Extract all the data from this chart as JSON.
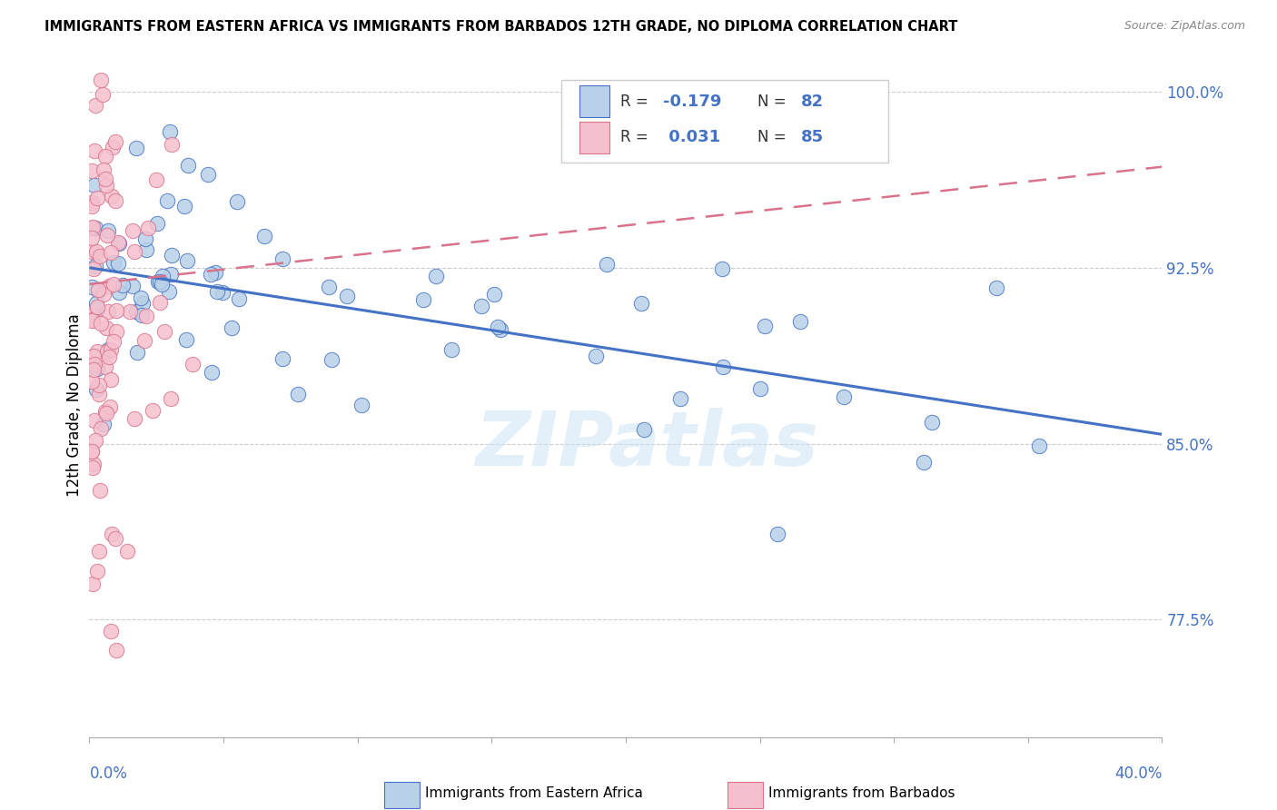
{
  "title": "IMMIGRANTS FROM EASTERN AFRICA VS IMMIGRANTS FROM BARBADOS 12TH GRADE, NO DIPLOMA CORRELATION CHART",
  "source": "Source: ZipAtlas.com",
  "ylabel_label": "12th Grade, No Diploma",
  "legend_label1": "Immigrants from Eastern Africa",
  "legend_label2": "Immigrants from Barbados",
  "blue_color": "#b8d0e8",
  "pink_color": "#f5c0ce",
  "blue_line_color": "#4472c4",
  "pink_line_color": "#d9728a",
  "r1": -0.179,
  "n1": 82,
  "r2": 0.031,
  "n2": 85,
  "xmin": 0.0,
  "xmax": 0.4,
  "ymin": 0.725,
  "ymax": 1.008,
  "watermark": "ZIPatlas",
  "blue_trend_x0": 0.0,
  "blue_trend_y0": 0.925,
  "blue_trend_x1": 0.4,
  "blue_trend_y1": 0.854,
  "pink_trend_x0": 0.0,
  "pink_trend_y0": 0.918,
  "pink_trend_x1": 0.4,
  "pink_trend_y1": 0.968,
  "y_ticks": [
    0.775,
    0.85,
    0.925,
    1.0
  ],
  "y_tick_labels": [
    "77.5%",
    "85.0%",
    "92.5%",
    "100.0%"
  ],
  "seed": 137
}
